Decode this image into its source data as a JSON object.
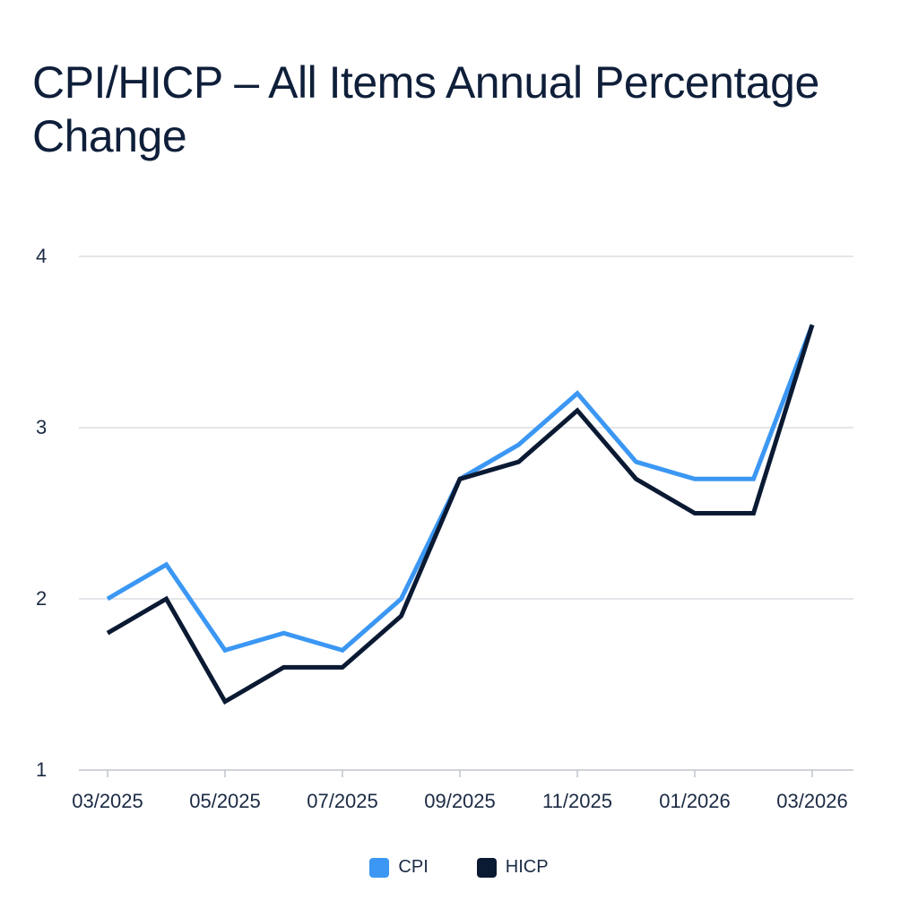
{
  "chart_data": {
    "type": "line",
    "title": "CPI/HICP – All Items Annual Percentage Change",
    "xlabel": "",
    "ylabel": "",
    "x": [
      "03/2025",
      "04/2025",
      "05/2025",
      "06/2025",
      "07/2025",
      "08/2025",
      "09/2025",
      "10/2025",
      "11/2025",
      "12/2025",
      "01/2026",
      "02/2026",
      "03/2026"
    ],
    "x_tick_labels": [
      "03/2025",
      "05/2025",
      "07/2025",
      "09/2025",
      "11/2025",
      "01/2026",
      "03/2026"
    ],
    "y_ticks": [
      1,
      2,
      3,
      4
    ],
    "ylim": [
      1,
      4
    ],
    "grid": true,
    "legend_position": "bottom-center",
    "series": [
      {
        "name": "CPI",
        "color": "#3b97f3",
        "values": [
          2.0,
          2.2,
          1.7,
          1.8,
          1.7,
          2.0,
          2.7,
          2.9,
          3.2,
          2.8,
          2.7,
          2.7,
          3.6
        ]
      },
      {
        "name": "HICP",
        "color": "#0b1a33",
        "values": [
          1.8,
          2.0,
          1.4,
          1.6,
          1.6,
          1.9,
          2.7,
          2.8,
          3.1,
          2.7,
          2.5,
          2.5,
          3.6
        ]
      }
    ]
  }
}
